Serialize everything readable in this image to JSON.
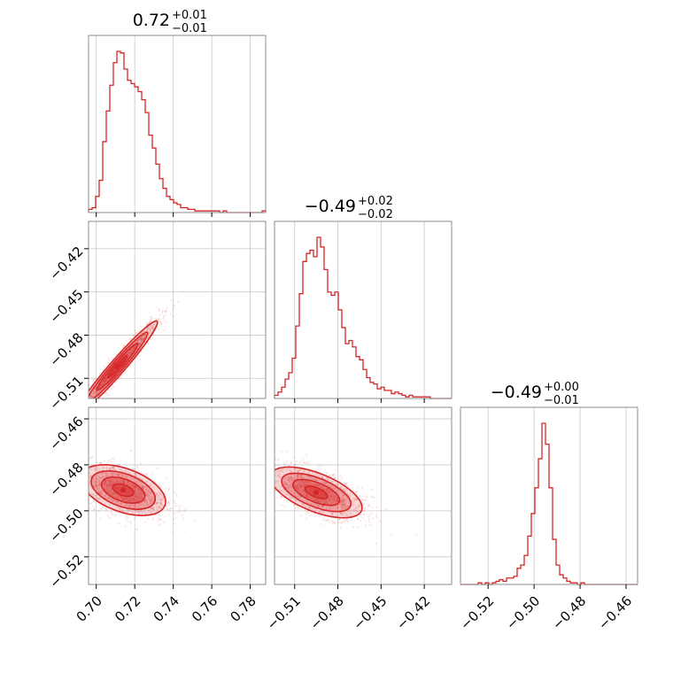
{
  "chart_data": {
    "type": "corner",
    "accent_color": "#d62728",
    "grid": true,
    "parameters": [
      {
        "title": {
          "value": "0.72",
          "plus": "+0.01",
          "minus": "−0.01"
        },
        "range": [
          0.696,
          0.788
        ],
        "ticks": [
          "0.70",
          "0.72",
          "0.74",
          "0.76",
          "0.78"
        ],
        "tick_values": [
          0.7,
          0.72,
          0.74,
          0.76,
          0.78
        ],
        "hist": {
          "edges_start": 0.696,
          "bin_width": 0.00184,
          "counts": [
            2,
            3,
            10,
            20,
            44,
            63,
            79,
            93,
            100,
            99,
            89,
            82,
            80,
            78,
            75,
            70,
            62,
            48,
            40,
            30,
            21,
            15,
            10,
            8,
            6,
            5,
            3,
            3,
            2,
            2,
            1,
            1,
            1,
            1,
            1,
            1,
            1,
            0,
            1,
            0,
            0,
            0,
            0,
            0,
            0,
            0,
            0,
            0,
            0,
            1
          ]
        }
      },
      {
        "title": {
          "value": "−0.49",
          "plus": "+0.02",
          "minus": "−0.02"
        },
        "range": [
          -0.524,
          -0.401
        ],
        "ticks": [
          "−0.51",
          "−0.48",
          "−0.45",
          "−0.42"
        ],
        "tick_values": [
          -0.51,
          -0.48,
          -0.45,
          -0.42
        ],
        "hist": {
          "edges_start": -0.524,
          "bin_width": 0.00246,
          "counts": [
            2,
            4,
            7,
            12,
            16,
            25,
            45,
            65,
            85,
            90,
            92,
            88,
            100,
            94,
            80,
            66,
            64,
            66,
            55,
            44,
            34,
            36,
            32,
            26,
            24,
            18,
            13,
            10,
            9,
            6,
            7,
            5,
            5,
            3,
            4,
            3,
            2,
            1,
            2,
            1,
            1,
            1,
            1,
            1,
            0,
            0,
            0,
            0,
            0,
            0
          ]
        }
      },
      {
        "title": {
          "value": "−0.49",
          "plus": "+0.00",
          "minus": "−0.01"
        },
        "range": [
          -0.532,
          -0.455
        ],
        "ticks": [
          "−0.52",
          "−0.50",
          "−0.48",
          "−0.46"
        ],
        "tick_values": [
          -0.52,
          -0.5,
          -0.48,
          -0.46
        ],
        "hist": {
          "edges_start": -0.532,
          "bin_width": 0.00154,
          "counts": [
            0,
            0,
            0,
            0,
            0,
            1,
            0,
            1,
            0,
            1,
            2,
            3,
            2,
            4,
            4,
            5,
            10,
            12,
            18,
            30,
            44,
            60,
            78,
            100,
            87,
            60,
            28,
            12,
            6,
            4,
            2,
            1,
            1,
            0,
            1,
            0,
            0,
            0,
            0,
            0,
            0,
            0,
            0,
            0,
            0,
            0,
            0,
            0,
            0,
            0
          ]
        }
      }
    ],
    "pairs": [
      {
        "row": 1,
        "col": 0,
        "center": [
          0.711,
          -0.502
        ],
        "sd": [
          0.0085,
          0.013
        ],
        "rho": 0.97,
        "n": 1400
      },
      {
        "row": 2,
        "col": 0,
        "center": [
          0.714,
          -0.491
        ],
        "sd": [
          0.009,
          0.0045
        ],
        "rho": -0.45,
        "n": 1400
      },
      {
        "row": 2,
        "col": 1,
        "center": [
          -0.495,
          -0.492
        ],
        "sd": [
          0.013,
          0.0045
        ],
        "rho": -0.6,
        "n": 1400
      }
    ],
    "contour_levels": [
      0.9,
      0.7,
      0.45,
      0.2
    ]
  }
}
